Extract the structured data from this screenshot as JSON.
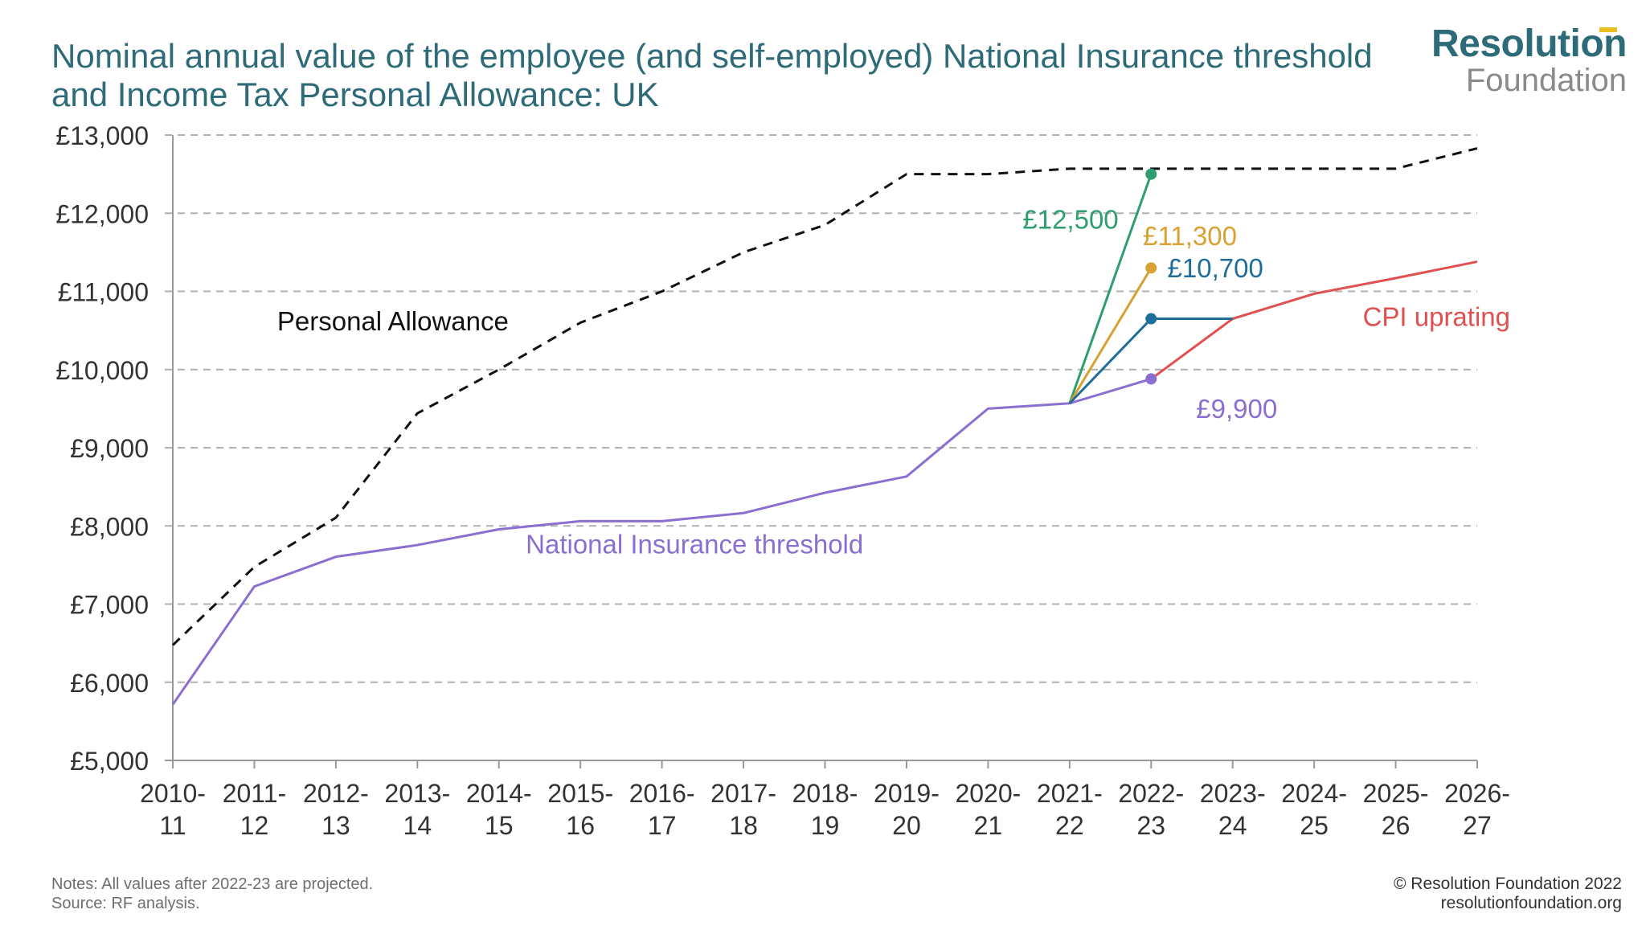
{
  "title": {
    "line1": "Nominal annual value of the employee (and self-employed) National Insurance threshold",
    "line2": "and Income Tax Personal Allowance: UK"
  },
  "logo": {
    "line1": "Resolution",
    "line2": "Foundation",
    "accent_color": "#e8c020"
  },
  "notes": {
    "line1": "Notes: All values after 2022-23 are projected.",
    "line2": "Source: RF analysis."
  },
  "credit": {
    "line1": "© Resolution Foundation 2022",
    "line2": "resolutionfoundation.org"
  },
  "colors": {
    "title": "#2e6b78",
    "personal_allowance": "#111111",
    "ni_threshold": "#8b6fd0",
    "green": "#2e9e6e",
    "orange": "#d9a032",
    "blue": "#1f6e9a",
    "cpi": "#e05050",
    "grid": "#b0b0b0"
  },
  "chart_data": {
    "type": "line",
    "categories_top": [
      "2010-",
      "2011-",
      "2012-",
      "2013-",
      "2014-",
      "2015-",
      "2016-",
      "2017-",
      "2018-",
      "2019-",
      "2020-",
      "2021-",
      "2022-",
      "2023-",
      "2024-",
      "2025-",
      "2026-"
    ],
    "categories_bottom": [
      "11",
      "12",
      "13",
      "14",
      "15",
      "16",
      "17",
      "18",
      "19",
      "20",
      "21",
      "22",
      "23",
      "24",
      "25",
      "26",
      "27"
    ],
    "ylim": [
      5000,
      13000
    ],
    "yticks": [
      5000,
      6000,
      7000,
      8000,
      9000,
      10000,
      11000,
      12000,
      13000
    ],
    "ytick_labels": [
      "£5,000",
      "£6,000",
      "£7,000",
      "£8,000",
      "£9,000",
      "£10,000",
      "£11,000",
      "£12,000",
      "£13,000"
    ],
    "series": [
      {
        "name": "Personal Allowance",
        "style": "dashed",
        "color_key": "personal_allowance",
        "x": [
          0,
          1,
          2,
          3,
          4,
          5,
          6,
          7,
          8,
          9,
          10,
          11,
          12,
          13,
          14,
          15,
          16
        ],
        "values": [
          6475,
          7475,
          8105,
          9440,
          10000,
          10600,
          11000,
          11500,
          11850,
          12500,
          12500,
          12570,
          12570,
          12570,
          12570,
          12570,
          12830
        ]
      },
      {
        "name": "National Insurance threshold",
        "style": "solid",
        "color_key": "ni_threshold",
        "x": [
          0,
          1,
          2,
          3,
          4,
          5,
          6,
          7,
          8,
          9,
          10,
          11,
          12
        ],
        "values": [
          5715,
          7225,
          7605,
          7755,
          7956,
          8060,
          8060,
          8164,
          8424,
          8632,
          9500,
          9568,
          9880
        ]
      },
      {
        "name": "CPI uprating",
        "style": "solid",
        "color_key": "cpi",
        "x": [
          12,
          13,
          14,
          15,
          16
        ],
        "values": [
          9880,
          10650,
          10970,
          11170,
          11380
        ]
      },
      {
        "name": "£12,500 scenario",
        "style": "solid",
        "color_key": "green",
        "x": [
          11,
          12
        ],
        "values": [
          9568,
          12500
        ],
        "marker_at_end": true
      },
      {
        "name": "£11,300 scenario",
        "style": "solid",
        "color_key": "orange",
        "x": [
          11,
          12
        ],
        "values": [
          9568,
          11300
        ],
        "marker_at_end": true
      },
      {
        "name": "£10,700 scenario",
        "style": "solid",
        "color_key": "blue",
        "x": [
          11,
          12,
          13
        ],
        "values": [
          9568,
          10650,
          10650
        ],
        "marker_index": 1
      },
      {
        "name": "£9,900 point",
        "style": "marker",
        "color_key": "ni_threshold",
        "x": [
          12
        ],
        "values": [
          9880
        ],
        "marker_at_end": true
      }
    ],
    "annotations": [
      {
        "key": "pa",
        "text": "Personal Allowance",
        "color_key": "personal_allowance",
        "x": 2.7,
        "y": 10500,
        "anchor": "middle"
      },
      {
        "key": "ni",
        "text": "National Insurance threshold",
        "color_key": "ni_threshold",
        "x": 6.4,
        "y": 7650,
        "anchor": "middle"
      },
      {
        "key": "g",
        "text": "£12,500",
        "color_key": "green",
        "x": 11.6,
        "y": 11800,
        "anchor": "end"
      },
      {
        "key": "o",
        "text": "£11,300",
        "color_key": "orange",
        "x": 11.9,
        "y": 11590,
        "anchor": "start"
      },
      {
        "key": "b",
        "text": "£10,700",
        "color_key": "blue",
        "x": 12.2,
        "y": 11180,
        "anchor": "start"
      },
      {
        "key": "c",
        "text": "CPI uprating",
        "color_key": "cpi",
        "x": 15.5,
        "y": 10560,
        "anchor": "middle"
      },
      {
        "key": "p",
        "text": "£9,900",
        "color_key": "ni_threshold",
        "x": 13.05,
        "y": 9380,
        "anchor": "middle"
      }
    ]
  }
}
